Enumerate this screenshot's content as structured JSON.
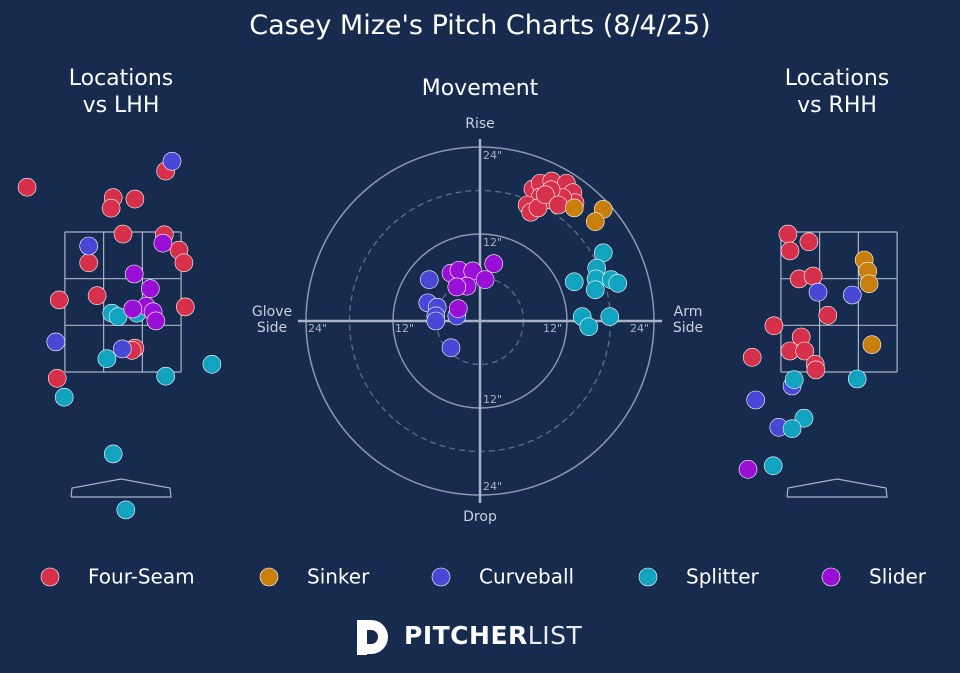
{
  "title": "Casey Mize's Pitch Charts (8/4/25)",
  "branding": {
    "bold": "PITCHER",
    "light": "LIST"
  },
  "chart_data": [
    {
      "type": "scatter",
      "title": "Locations\nvs LHH",
      "series": [
        {
          "color": "#d7304b",
          "x": [
            -1.37,
            -0.14,
            0.17,
            -0.17,
            0.61,
            0,
            0.59,
            0.8,
            -0.49,
            0.87,
            -0.91,
            -0.37,
            0.89,
            0.17,
            0.13,
            -0.94
          ],
          "values": [
            4.14,
            3.99,
            3.97,
            3.84,
            4.37,
            3.47,
            3.46,
            3.24,
            3.06,
            3.06,
            2.53,
            2.59,
            2.43,
            1.84,
            1.81,
            1.41
          ]
        },
        {
          "color": "#c97f0d",
          "x": [],
          "values": []
        },
        {
          "color": "#4848d6",
          "x": [
            0.7,
            -0.49,
            -0.96,
            -0.01
          ],
          "values": [
            4.51,
            3.3,
            1.93,
            1.83
          ]
        },
        {
          "color": "#12a3c0",
          "x": [
            -0.16,
            -0.07,
            0.2,
            -0.23,
            0.61,
            1.27,
            -0.84,
            -0.14,
            0.04
          ],
          "values": [
            2.34,
            2.29,
            2.34,
            1.69,
            1.44,
            1.61,
            1.14,
            0.33,
            -0.47
          ]
        },
        {
          "color": "#9a0fd6",
          "x": [
            0.57,
            0.16,
            0.39,
            0.33,
            0.14,
            0.43,
            0.47
          ],
          "values": [
            3.34,
            2.9,
            2.69,
            2.44,
            2.4,
            2.36,
            2.23
          ]
        }
      ]
    },
    {
      "type": "polar",
      "title": "Movement",
      "axis_labels": {
        "top": "Rise",
        "bottom": "Drop",
        "left": "Glove\nSide",
        "right": "Arm\nSide"
      },
      "rticks": [
        {
          "value": 12,
          "label": "12\""
        },
        {
          "value": 24,
          "label": "24\""
        }
      ],
      "series": [
        {
          "name": "Four-Seam",
          "color": "#d7304b",
          "x": [
            7.3,
            8.3,
            9.9,
            11.9,
            12.8,
            13.1,
            11.4,
            9.7,
            8.3,
            6.5,
            7.0,
            8.0,
            9.8,
            9.0,
            10.8
          ],
          "values": [
            18.2,
            19.0,
            19.3,
            19.0,
            17.7,
            16.3,
            17.0,
            16.7,
            17.1,
            16.0,
            15.0,
            15.6,
            18.1,
            17.4,
            16.0
          ]
        },
        {
          "name": "Sinker",
          "color": "#c97f0d",
          "x": [
            17.0,
            15.9,
            13.0
          ],
          "values": [
            15.4,
            13.7,
            15.6
          ]
        },
        {
          "name": "Curveball",
          "color": "#4848d6",
          "x": [
            -7.0,
            -7.2,
            -5.9,
            -6.1,
            -6.1,
            -3.2,
            -4.0
          ],
          "values": [
            5.7,
            2.5,
            1.9,
            0.7,
            0.0,
            0.7,
            -3.7
          ]
        },
        {
          "name": "Splitter",
          "color": "#12a3c0",
          "x": [
            17.0,
            16.1,
            16.0,
            15.9,
            13.0,
            18.1,
            19.0,
            14.1,
            15.0,
            17.9
          ],
          "values": [
            9.4,
            7.3,
            5.8,
            4.3,
            5.4,
            5.7,
            5.2,
            0.6,
            -0.8,
            0.6
          ]
        },
        {
          "name": "Slider",
          "color": "#9a0fd6",
          "x": [
            -4.0,
            -2.9,
            -1.0,
            1.9,
            0.7,
            -1.8,
            -3.2,
            -3.0
          ],
          "values": [
            6.6,
            7.0,
            6.9,
            7.9,
            5.7,
            4.8,
            4.7,
            1.7
          ]
        }
      ]
    },
    {
      "type": "scatter",
      "title": "Locations\nvs RHH",
      "series": [
        {
          "color": "#d7304b",
          "x": [
            -0.73,
            -0.43,
            -0.7,
            -0.57,
            -0.37,
            -0.16,
            -0.93,
            -0.54,
            -1.24,
            -0.7,
            -0.49,
            -0.34,
            -0.33
          ],
          "values": [
            3.47,
            3.36,
            3.23,
            2.83,
            2.87,
            2.31,
            2.16,
            2.0,
            1.71,
            1.8,
            1.8,
            1.61,
            1.53
          ]
        },
        {
          "color": "#c97f0d",
          "x": [
            0.36,
            0.41,
            0.43,
            0.47
          ],
          "values": [
            3.1,
            2.94,
            2.76,
            1.89
          ]
        },
        {
          "color": "#4848d6",
          "x": [
            -0.3,
            0.19,
            -0.67,
            -1.19,
            -0.86
          ],
          "values": [
            2.64,
            2.6,
            1.3,
            1.1,
            0.71
          ]
        },
        {
          "color": "#12a3c0",
          "x": [
            -0.64,
            0.26,
            -0.5,
            -0.67,
            -0.94
          ],
          "values": [
            1.39,
            1.4,
            0.84,
            0.69,
            0.16
          ]
        },
        {
          "color": "#9a0fd6",
          "x": [
            -1.3
          ],
          "values": [
            0.11
          ]
        }
      ]
    }
  ]
}
